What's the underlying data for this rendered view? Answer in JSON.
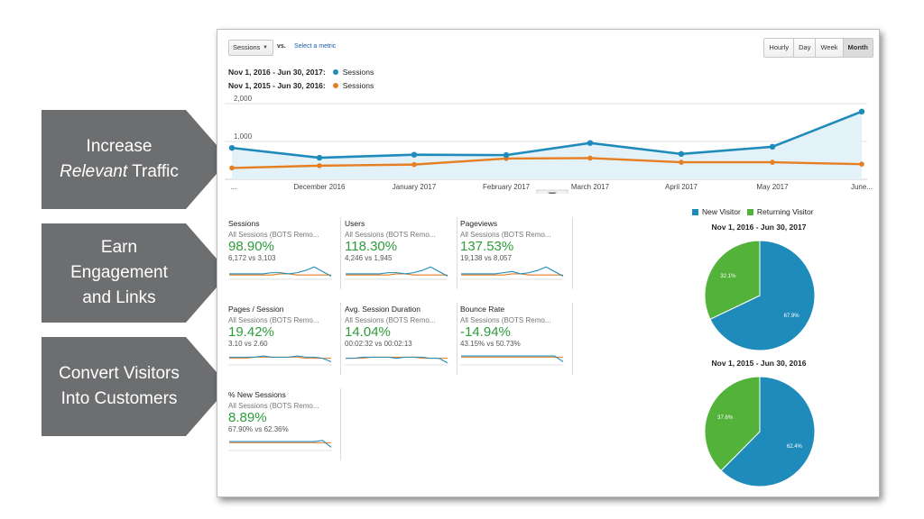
{
  "callouts": [
    {
      "line1": "Increase",
      "line2_em": "Relevant",
      "line2_rest": " Traffic"
    },
    {
      "line1": "Earn",
      "line2": "Engagement",
      "line3": "and Links"
    },
    {
      "line1": "Convert Visitors",
      "line2": "Into Customers"
    }
  ],
  "toolbar": {
    "metric_select": "Sessions",
    "vs_label": "vs.",
    "select_metric_link": "Select a metric",
    "time_buttons": [
      "Hourly",
      "Day",
      "Week",
      "Month"
    ],
    "active_time": "Month"
  },
  "legend": [
    {
      "range": "Nov 1, 2016 - Jun 30, 2017:",
      "series": "Sessions",
      "color": "#1f8bbb"
    },
    {
      "range": "Nov 1, 2015 - Jun 30, 2016:",
      "series": "Sessions",
      "color": "#e67e22"
    }
  ],
  "chart_data": [
    {
      "type": "line",
      "categories": [
        "...",
        "December 2016",
        "January 2017",
        "February 2017",
        "March 2017",
        "April 2017",
        "May 2017",
        "June..."
      ],
      "ylim": [
        0,
        2000
      ],
      "yticks": [
        "2,000",
        "1,000"
      ],
      "grid": true,
      "series": [
        {
          "name": "Nov 1, 2016 - Jun 30, 2017: Sessions",
          "color": "#1f8bbb",
          "values": [
            830,
            570,
            650,
            640,
            960,
            670,
            860,
            1790
          ]
        },
        {
          "name": "Nov 1, 2015 - Jun 30, 2016: Sessions",
          "color": "#e67e22",
          "values": [
            300,
            360,
            390,
            550,
            560,
            450,
            450,
            400
          ]
        }
      ]
    },
    {
      "type": "pie",
      "title": "Nov 1, 2016 - Jun 30, 2017",
      "legend": [
        "New Visitor",
        "Returning Visitor"
      ],
      "slices": [
        {
          "name": "New Visitor",
          "value": 67.9,
          "label": "67.9%",
          "color": "#1f8bbb"
        },
        {
          "name": "Returning Visitor",
          "value": 32.1,
          "label": "32.1%",
          "color": "#53b23a"
        }
      ]
    },
    {
      "type": "pie",
      "title": "Nov 1, 2015 - Jun 30, 2016",
      "slices": [
        {
          "name": "New Visitor",
          "value": 62.4,
          "label": "62.4%",
          "color": "#1f8bbb"
        },
        {
          "name": "Returning Visitor",
          "value": 37.6,
          "label": "37.6%",
          "color": "#53b23a"
        }
      ]
    }
  ],
  "tiles": [
    {
      "name": "Sessions",
      "segment": "All Sessions (BOTS Remo...",
      "pct": "98.90%",
      "compare": "6,172 vs 3,103",
      "spark_a": [
        4,
        4,
        4,
        4,
        4,
        5,
        5,
        4,
        5,
        7,
        10,
        6,
        2
      ],
      "spark_b": [
        3,
        3,
        3,
        3,
        3,
        3,
        4,
        4,
        3,
        3,
        3,
        3,
        3
      ]
    },
    {
      "name": "Users",
      "segment": "All Sessions (BOTS Remo...",
      "pct": "118.30%",
      "compare": "4,246 vs 1,945",
      "spark_a": [
        4,
        4,
        4,
        4,
        4,
        5,
        5,
        4,
        5,
        7,
        10,
        6,
        2
      ],
      "spark_b": [
        3,
        3,
        3,
        3,
        3,
        3,
        4,
        4,
        3,
        3,
        3,
        3,
        3
      ]
    },
    {
      "name": "Pageviews",
      "segment": "All Sessions (BOTS Remo...",
      "pct": "137.53%",
      "compare": "19,138 vs 8,057",
      "spark_a": [
        4,
        4,
        4,
        4,
        4,
        5,
        6,
        4,
        5,
        7,
        10,
        6,
        2
      ],
      "spark_b": [
        3,
        3,
        3,
        3,
        3,
        3,
        4,
        4,
        3,
        3,
        3,
        3,
        3
      ]
    },
    {
      "name": "Pages / Session",
      "segment": "All Sessions (BOTS Remo...",
      "pct": "19.42%",
      "compare": "3.10 vs 2.60",
      "spark_a": [
        6,
        6,
        6,
        6,
        7,
        6,
        6,
        6,
        7,
        6,
        6,
        5,
        2
      ],
      "spark_b": [
        5,
        5,
        5,
        6,
        6,
        6,
        6,
        6,
        6,
        5,
        5,
        5,
        5
      ]
    },
    {
      "name": "Avg. Session Duration",
      "segment": "All Sessions (BOTS Remo...",
      "pct": "14.04%",
      "compare": "00:02:32 vs 00:02:13",
      "spark_a": [
        5,
        5,
        6,
        6,
        6,
        6,
        5,
        6,
        6,
        6,
        5,
        5,
        1
      ],
      "spark_b": [
        5,
        5,
        5,
        6,
        6,
        6,
        6,
        6,
        6,
        5,
        5,
        5,
        5
      ]
    },
    {
      "name": "Bounce Rate",
      "segment": "All Sessions (BOTS Remo...",
      "pct": "-14.94%",
      "compare": "43.15% vs 50.73%",
      "spark_a": [
        7,
        7,
        7,
        7,
        7,
        7,
        7,
        7,
        7,
        7,
        7,
        7,
        2
      ],
      "spark_b": [
        6,
        6,
        6,
        6,
        6,
        6,
        6,
        6,
        6,
        6,
        6,
        6,
        6
      ]
    },
    {
      "name": "% New Sessions",
      "segment": "All Sessions (BOTS Remo...",
      "pct": "8.89%",
      "compare": "67.90% vs 62.36%",
      "spark_a": [
        7,
        7,
        7,
        7,
        7,
        7,
        7,
        7,
        7,
        7,
        7,
        8,
        2
      ],
      "spark_b": [
        6,
        6,
        6,
        6,
        6,
        6,
        6,
        6,
        6,
        6,
        6,
        6,
        6
      ]
    }
  ]
}
